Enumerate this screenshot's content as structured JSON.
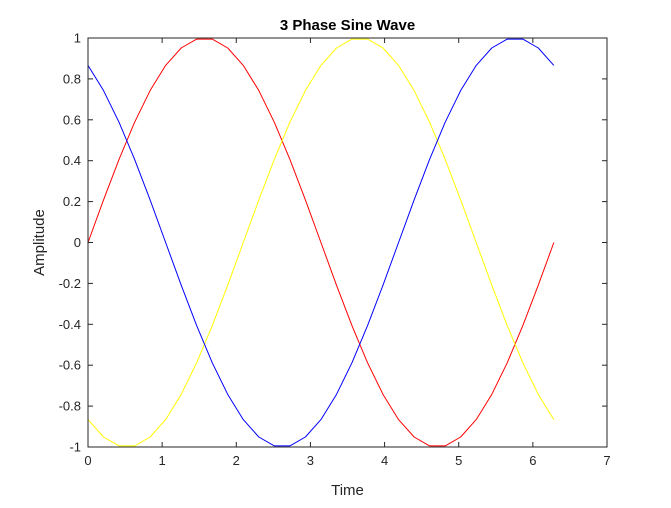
{
  "chart_data": {
    "type": "line",
    "title": "3 Phase Sine Wave",
    "xlabel": "Time",
    "ylabel": "Amplitude",
    "xlim": [
      0,
      7
    ],
    "ylim": [
      -1,
      1
    ],
    "xticks": [
      0,
      1,
      2,
      3,
      4,
      5,
      6,
      7
    ],
    "yticks": [
      -1,
      -0.8,
      -0.6,
      -0.4,
      -0.2,
      0,
      0.2,
      0.4,
      0.6,
      0.8,
      1
    ],
    "xtick_labels": [
      "0",
      "1",
      "2",
      "3",
      "4",
      "5",
      "6",
      "7"
    ],
    "ytick_labels": [
      "-1",
      "-0.8",
      "-0.6",
      "-0.4",
      "-0.2",
      "0",
      "0.2",
      "0.4",
      "0.6",
      "0.8",
      "1"
    ],
    "grid": false,
    "legend": "none",
    "x": [
      0,
      0.2094,
      0.4189,
      0.6283,
      0.8378,
      1.0472,
      1.2566,
      1.4661,
      1.6755,
      1.885,
      2.0944,
      2.3038,
      2.5133,
      2.7227,
      2.9322,
      3.1416,
      3.351,
      3.5605,
      3.7699,
      3.9794,
      4.1888,
      4.3982,
      4.6077,
      4.8171,
      5.0265,
      5.236,
      5.4454,
      5.6549,
      5.8643,
      6.0737,
      6.2832
    ],
    "series": [
      {
        "color": "#ff0000",
        "values": [
          0,
          0.2079,
          0.4067,
          0.5878,
          0.7431,
          0.866,
          0.9511,
          0.9945,
          0.9945,
          0.9511,
          0.866,
          0.7431,
          0.5878,
          0.4067,
          0.2079,
          0,
          -0.2079,
          -0.4067,
          -0.5878,
          -0.7431,
          -0.866,
          -0.9511,
          -0.9945,
          -0.9945,
          -0.9511,
          -0.866,
          -0.7431,
          -0.5878,
          -0.4067,
          -0.2079,
          0
        ]
      },
      {
        "color": "#ffff00",
        "values": [
          -0.866,
          -0.9511,
          -0.9945,
          -0.9945,
          -0.9511,
          -0.866,
          -0.7431,
          -0.5878,
          -0.4067,
          -0.2079,
          0,
          0.2079,
          0.4067,
          0.5878,
          0.7431,
          0.866,
          0.9511,
          0.9945,
          0.9945,
          0.9511,
          0.866,
          0.7431,
          0.5878,
          0.4067,
          0.2079,
          0,
          -0.2079,
          -0.4067,
          -0.5878,
          -0.7431,
          -0.866
        ]
      },
      {
        "color": "#0000ff",
        "values": [
          0.866,
          0.7431,
          0.5878,
          0.4067,
          0.2079,
          0,
          -0.2079,
          -0.4067,
          -0.5878,
          -0.7431,
          -0.866,
          -0.9511,
          -0.9945,
          -0.9945,
          -0.9511,
          -0.866,
          -0.7431,
          -0.5878,
          -0.4067,
          -0.2079,
          0,
          0.2079,
          0.4067,
          0.5878,
          0.7431,
          0.866,
          0.9511,
          0.9945,
          0.9945,
          0.9511,
          0.866
        ]
      }
    ]
  }
}
